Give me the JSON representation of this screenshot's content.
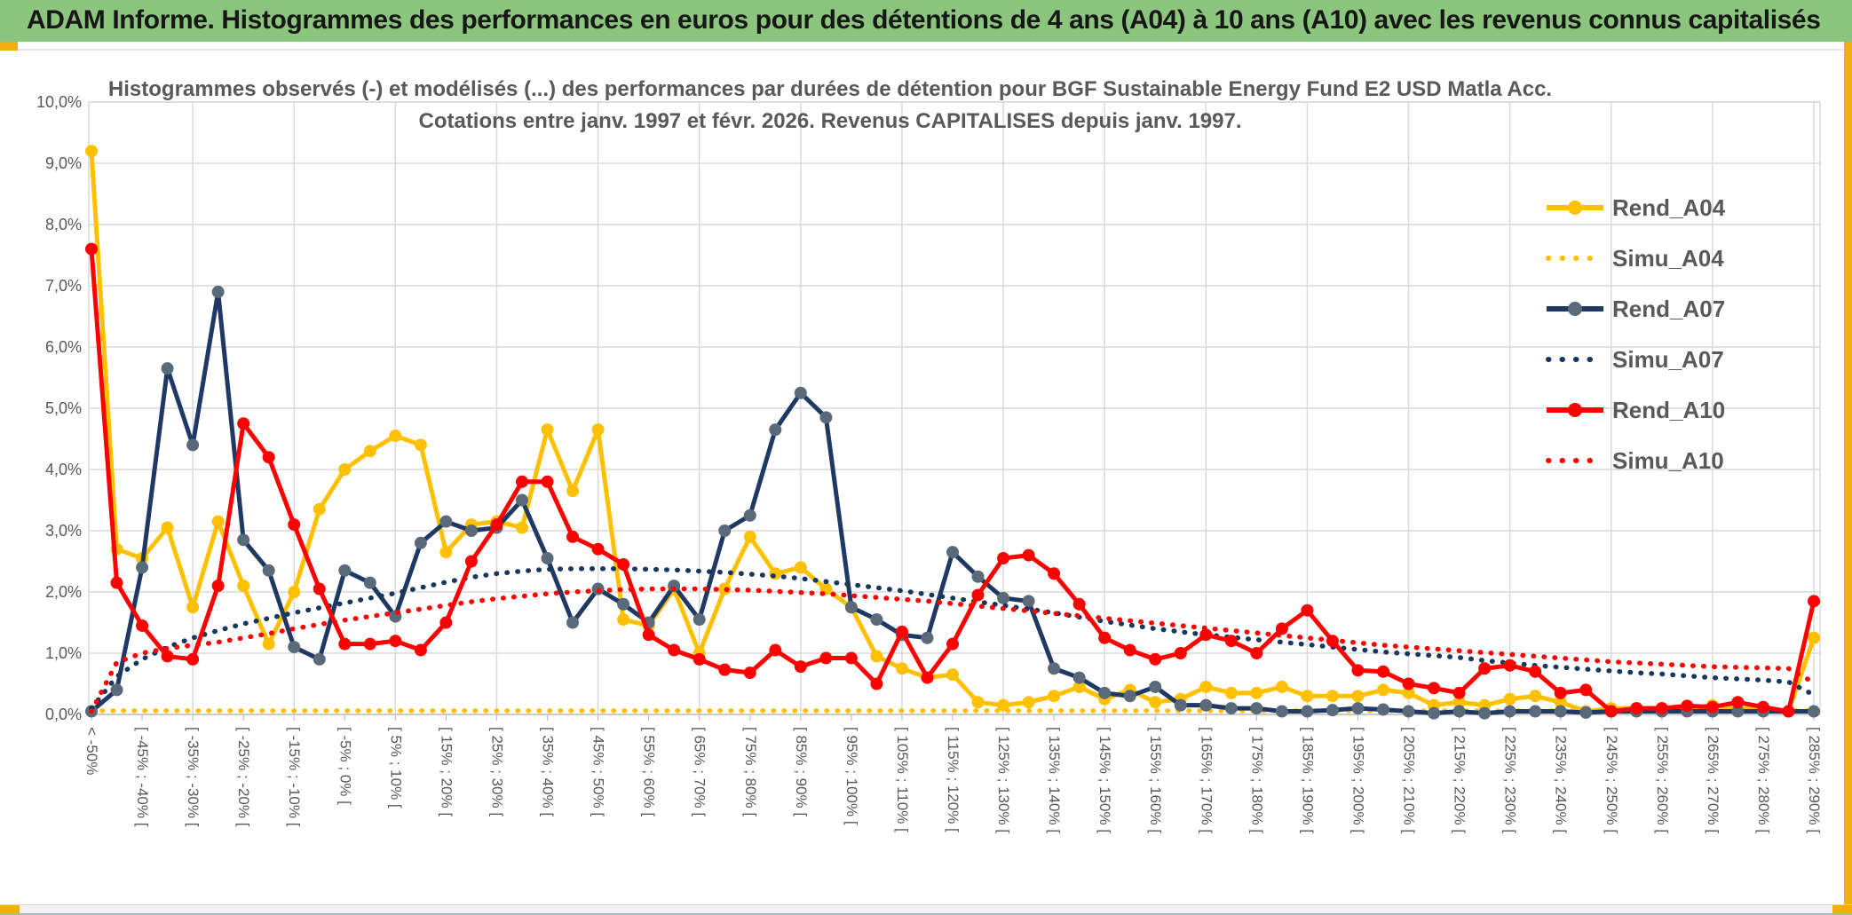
{
  "window": {
    "title": "ADAM Informe. Histogrammes des performances en euros pour des détentions de 4 ans (A04) à 10 ans (A10) avec les revenus connus capitalisés"
  },
  "colors": {
    "titlebar_bg": "#8BC57E",
    "accent_gold": "#EFAF10",
    "grid": "#D9D9D9",
    "axis_text": "#595959",
    "series_yellow": "#FFC000",
    "series_navy": "#1F3864",
    "series_red": "#FF0000"
  },
  "chart_data": {
    "type": "line",
    "title_line1": "Histogrammes observés (-) et modélisés (...) des performances par durées de détention pour BGF Sustainable Energy Fund E2 USD Matla Acc.",
    "title_line2": "Cotations entre janv. 1997 et févr. 2026. Revenus CAPITALISES depuis janv. 1997.",
    "ylabel": "",
    "xlabel": "",
    "ylim": [
      0,
      10
    ],
    "grid": "both",
    "legend_position": "right",
    "bins_count": 69,
    "x_ticks_every_n_bins": 2,
    "y_tick_labels": [
      "0,0%",
      "1,0%",
      "2,0%",
      "3,0%",
      "4,0%",
      "5,0%",
      "6,0%",
      "7,0%",
      "8,0%",
      "9,0%",
      "10,0%"
    ],
    "x_tick_labels": [
      "< -50%",
      "[ -45% ; -40% [",
      "[ -35% ; -30% [",
      "[ -25% ; -20% [",
      "[ -15% ; -10% [",
      "[ -5% ; 0% [",
      "[ 5% ; 10% [",
      "[ 15% ; 20% [",
      "[ 25% ; 30% [",
      "[ 35% ; 40% [",
      "[ 45% ; 50% [",
      "[ 55% ; 60% [",
      "[ 65% ; 70% [",
      "[ 75% ; 80% [",
      "[ 85% ; 90% [",
      "[ 95% ; 100% [",
      "[ 105% ; 110% [",
      "[ 115% ; 120% [",
      "[ 125% ; 130% [",
      "[ 135% ; 140% [",
      "[ 145% ; 150% [",
      "[ 155% ; 160% [",
      "[ 165% ; 170% [",
      "[ 175% ; 180% [",
      "[ 185% ; 190% [",
      "[ 195% ; 200% [",
      "[ 205% ; 210% [",
      "[ 215% ; 220% [",
      "[ 225% ; 230% [",
      "[ 235% ; 240% [",
      "[ 245% ; 250% [",
      "[ 255% ; 260% [",
      "[ 265% ; 270% [",
      "[ 275% ; 280% [",
      "[ 285% ; 290% ["
    ],
    "series": [
      {
        "name": "Rend_A04",
        "style": "solid",
        "color": "#FFC000",
        "marker_color": "#FFC000",
        "values": [
          9.2,
          2.7,
          2.55,
          3.05,
          1.75,
          3.15,
          2.1,
          1.15,
          2.0,
          3.35,
          4.0,
          4.3,
          4.55,
          4.4,
          2.65,
          3.1,
          3.15,
          3.05,
          4.65,
          3.65,
          4.65,
          1.55,
          1.45,
          2.05,
          1.0,
          2.05,
          2.9,
          2.3,
          2.4,
          2.05,
          1.75,
          0.95,
          0.75,
          0.6,
          0.65,
          0.2,
          0.15,
          0.2,
          0.3,
          0.45,
          0.25,
          0.4,
          0.2,
          0.25,
          0.45,
          0.35,
          0.35,
          0.45,
          0.3,
          0.3,
          0.3,
          0.4,
          0.35,
          0.15,
          0.2,
          0.15,
          0.25,
          0.3,
          0.2,
          0.05,
          0.1,
          0.1,
          0.1,
          0.1,
          0.15,
          0.1,
          0.1,
          0.05,
          1.25
        ]
      },
      {
        "name": "Simu_A04",
        "style": "dotted",
        "color": "#FFC000",
        "values": [
          0.06,
          0.06,
          0.06,
          0.06,
          0.06,
          0.06,
          0.06,
          0.06,
          0.06,
          0.06,
          0.06,
          0.06,
          0.06,
          0.06,
          0.06,
          0.06,
          0.06,
          0.06,
          0.06,
          0.06,
          0.06,
          0.06,
          0.06,
          0.06,
          0.06,
          0.06,
          0.06,
          0.06,
          0.06,
          0.06,
          0.06,
          0.06,
          0.06,
          0.06,
          0.06,
          0.06,
          0.06,
          0.06,
          0.06,
          0.06,
          0.06,
          0.06,
          0.06,
          0.06,
          0.06,
          0.06,
          0.06,
          0.06,
          0.06,
          0.06,
          0.06,
          0.06,
          0.06,
          0.06,
          0.06,
          0.06,
          0.06,
          0.06,
          0.06,
          0.06,
          0.06,
          0.06,
          0.06,
          0.06,
          0.06,
          0.06,
          0.06,
          0.06,
          0.06
        ]
      },
      {
        "name": "Rend_A07",
        "style": "solid",
        "color": "#1F3864",
        "marker_color": "#5A6A7A",
        "values": [
          0.05,
          0.4,
          2.4,
          5.65,
          4.4,
          6.9,
          2.85,
          2.35,
          1.1,
          0.9,
          2.35,
          2.15,
          1.6,
          2.8,
          3.15,
          3.0,
          3.05,
          3.5,
          2.55,
          1.5,
          2.05,
          1.8,
          1.5,
          2.1,
          1.55,
          3.0,
          3.25,
          4.65,
          5.25,
          4.85,
          1.75,
          1.55,
          1.3,
          1.25,
          2.65,
          2.25,
          1.9,
          1.85,
          0.75,
          0.6,
          0.35,
          0.3,
          0.45,
          0.15,
          0.15,
          0.1,
          0.1,
          0.05,
          0.05,
          0.07,
          0.1,
          0.08,
          0.05,
          0.02,
          0.05,
          0.02,
          0.05,
          0.05,
          0.05,
          0.03,
          0.05,
          0.05,
          0.05,
          0.05,
          0.05,
          0.05,
          0.05,
          0.05,
          0.05
        ]
      },
      {
        "name": "Simu_A07",
        "style": "dotted",
        "color": "#17375E",
        "values": [
          0.1,
          0.62,
          0.9,
          1.1,
          1.25,
          1.37,
          1.48,
          1.57,
          1.66,
          1.74,
          1.82,
          1.9,
          1.98,
          2.07,
          2.16,
          2.24,
          2.3,
          2.34,
          2.37,
          2.38,
          2.38,
          2.38,
          2.37,
          2.36,
          2.34,
          2.32,
          2.29,
          2.26,
          2.22,
          2.17,
          2.12,
          2.07,
          2.02,
          1.96,
          1.9,
          1.84,
          1.78,
          1.72,
          1.66,
          1.59,
          1.52,
          1.46,
          1.4,
          1.35,
          1.3,
          1.26,
          1.22,
          1.18,
          1.14,
          1.1,
          1.06,
          1.02,
          0.99,
          0.96,
          0.93,
          0.88,
          0.84,
          0.8,
          0.77,
          0.74,
          0.71,
          0.68,
          0.66,
          0.63,
          0.6,
          0.58,
          0.56,
          0.53,
          0.32
        ]
      },
      {
        "name": "Rend_A10",
        "style": "solid",
        "color": "#FF0000",
        "marker_color": "#FF0000",
        "values": [
          7.6,
          2.15,
          1.45,
          0.95,
          0.9,
          2.1,
          4.75,
          4.2,
          3.1,
          2.05,
          1.15,
          1.15,
          1.2,
          1.05,
          1.5,
          2.5,
          3.1,
          3.8,
          3.8,
          2.9,
          2.7,
          2.45,
          1.3,
          1.05,
          0.9,
          0.73,
          0.68,
          1.05,
          0.78,
          0.92,
          0.92,
          0.5,
          1.35,
          0.6,
          1.15,
          1.95,
          2.55,
          2.6,
          2.3,
          1.8,
          1.25,
          1.05,
          0.9,
          1.0,
          1.3,
          1.2,
          1.0,
          1.4,
          1.7,
          1.2,
          0.72,
          0.7,
          0.5,
          0.43,
          0.35,
          0.75,
          0.8,
          0.7,
          0.35,
          0.4,
          0.05,
          0.1,
          0.1,
          0.14,
          0.12,
          0.2,
          0.12,
          0.05,
          1.85
        ]
      },
      {
        "name": "Simu_A10",
        "style": "dotted",
        "color": "#FF0000",
        "values": [
          0.05,
          0.85,
          1.0,
          1.08,
          1.13,
          1.18,
          1.25,
          1.32,
          1.4,
          1.47,
          1.54,
          1.6,
          1.66,
          1.72,
          1.78,
          1.84,
          1.89,
          1.93,
          1.97,
          2.0,
          2.02,
          2.04,
          2.05,
          2.05,
          2.05,
          2.04,
          2.03,
          2.01,
          1.99,
          1.97,
          1.94,
          1.91,
          1.88,
          1.85,
          1.81,
          1.77,
          1.73,
          1.69,
          1.65,
          1.61,
          1.57,
          1.53,
          1.49,
          1.45,
          1.41,
          1.37,
          1.33,
          1.29,
          1.25,
          1.21,
          1.17,
          1.13,
          1.1,
          1.07,
          1.04,
          1.01,
          0.98,
          0.95,
          0.92,
          0.89,
          0.86,
          0.84,
          0.82,
          0.8,
          0.78,
          0.77,
          0.76,
          0.75,
          0.52
        ]
      }
    ]
  }
}
